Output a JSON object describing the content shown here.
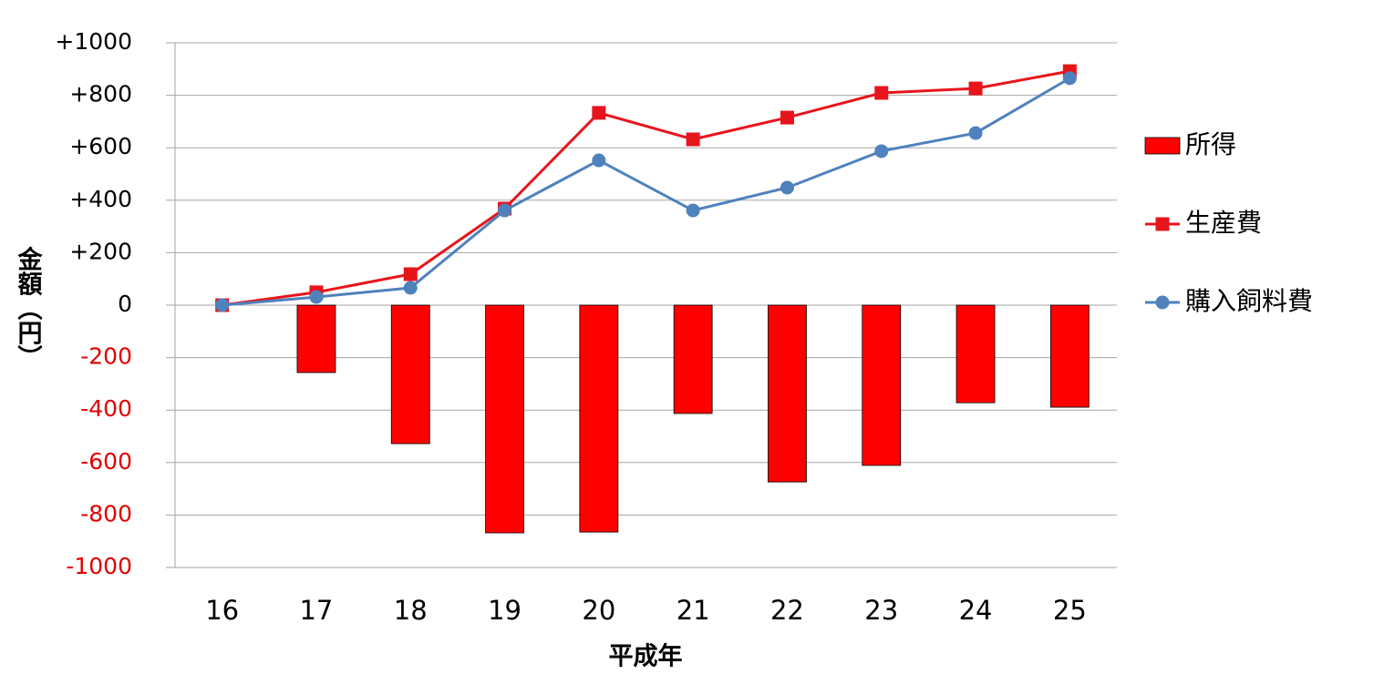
{
  "chart_data": {
    "type": "bar-line",
    "x_label": "平成年",
    "y_label": "金額（円）",
    "categories": [
      "16",
      "17",
      "18",
      "19",
      "20",
      "21",
      "22",
      "23",
      "24",
      "25"
    ],
    "series": [
      {
        "name": "所得",
        "type": "bar",
        "color": "#ff0000",
        "values": [
          0,
          -257,
          -528,
          -868,
          -865,
          -413,
          -674,
          -611,
          -372,
          -389
        ]
      },
      {
        "name": "生産費",
        "type": "line",
        "marker": "square",
        "color": "#e8141b",
        "values": [
          0,
          49,
          118,
          368,
          733,
          632,
          715,
          809,
          826,
          892
        ]
      },
      {
        "name": "購入飼料費",
        "type": "line",
        "marker": "circle",
        "color": "#4f81bd",
        "values": [
          0,
          31,
          66,
          361,
          552,
          361,
          448,
          587,
          656,
          865
        ]
      }
    ],
    "ylim": [
      -1000,
      1000
    ],
    "yticks": [
      {
        "value": 1000,
        "label": "+1000"
      },
      {
        "value": 800,
        "label": "+800"
      },
      {
        "value": 600,
        "label": "+600"
      },
      {
        "value": 400,
        "label": "+400"
      },
      {
        "value": 200,
        "label": "+200"
      },
      0,
      -200,
      -400,
      -600,
      -800,
      -1000
    ],
    "ytick_label_colors": {
      "positive": "#000000",
      "negative": "#e00000"
    },
    "grid": true,
    "legend": "right"
  }
}
